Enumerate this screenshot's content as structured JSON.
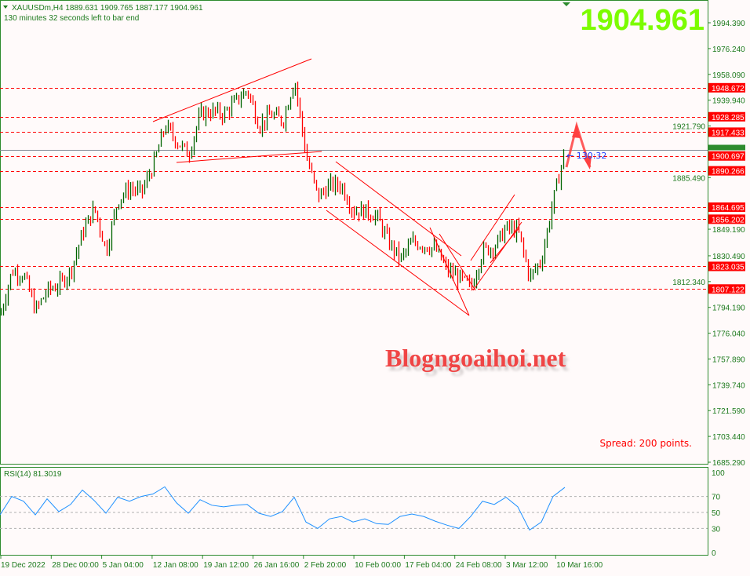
{
  "header": {
    "symbol_line": "XAUUSDm,H4  1889.631 1909.765 1887.177 1904.961",
    "timer_line": "130 minutes 32 seconds left to bar end"
  },
  "big_price": "1904.961",
  "watermark": "Blogngoaihoi.net",
  "spread_text": "Spread: 200 points.",
  "bar_timer": "← 130:32",
  "colors": {
    "background": "#fffafa",
    "frame": "#2e8b2e",
    "bull_bar": "#006400",
    "bear_bar": "#ff0000",
    "level_line": "#ff0000",
    "rsi_line": "#1e90ff",
    "big_price": "#7cfc00",
    "current_price_line": "#808a96"
  },
  "chart_data": [
    {
      "type": "ohlc",
      "symbol": "XAUUSDm",
      "timeframe": "H4",
      "last": {
        "open": 1889.631,
        "high": 1909.765,
        "low": 1887.177,
        "close": 1904.961
      },
      "ylim": [
        1685.29,
        1994.39
      ],
      "y_ticks": [
        "1994.390",
        "1976.240",
        "1958.090",
        "1939.940",
        "1921.790",
        "1885.490",
        "1849.190",
        "1830.490",
        "1812.340",
        "1794.190",
        "1776.040",
        "1757.890",
        "1739.740",
        "1721.590",
        "1703.440",
        "1685.290"
      ],
      "approx_closes": [
        1789,
        1820,
        1817,
        1792,
        1806,
        1810,
        1820,
        1847,
        1864,
        1834,
        1870,
        1878,
        1875,
        1894,
        1922,
        1911,
        1902,
        1930,
        1932,
        1930,
        1939,
        1947,
        1922,
        1930,
        1925,
        1955,
        1900,
        1872,
        1880,
        1880,
        1862,
        1862,
        1858,
        1840,
        1828,
        1840,
        1838,
        1835,
        1820,
        1815,
        1808,
        1834,
        1837,
        1850,
        1848,
        1815,
        1828,
        1870,
        1904.961
      ],
      "levels": [
        "1948.672",
        "1928.285",
        "1917.433",
        "1900.697",
        "1890.266",
        "1864.695",
        "1856.202",
        "1823.035",
        "1807.122"
      ],
      "current_price": "1904.961",
      "x_ticks": [
        "19 Dec 2022",
        "28 Dec 00:00",
        "5 Jan 04:00",
        "12 Jan 08:00",
        "19 Jan 12:00",
        "26 Jan 16:00",
        "2 Feb 20:00",
        "10 Feb 00:00",
        "17 Feb 04:00",
        "24 Feb 08:00",
        "3 Mar 12:00",
        "10 Mar 16:00"
      ]
    },
    {
      "type": "line",
      "title": "RSI(14) 81.3019",
      "ylim": [
        0,
        100
      ],
      "y_ticks": [
        "100",
        "70",
        "50",
        "30",
        "0"
      ],
      "levels": [
        70,
        50,
        30
      ],
      "values": [
        47,
        70,
        64,
        47,
        67,
        51,
        60,
        78,
        65,
        49,
        69,
        64,
        70,
        73,
        82,
        62,
        49,
        66,
        59,
        57,
        59,
        60,
        49,
        45,
        51,
        69,
        38,
        30,
        42,
        45,
        38,
        42,
        36,
        35,
        45,
        48,
        45,
        39,
        34,
        30,
        45,
        64,
        60,
        69,
        57,
        28,
        38,
        70,
        81.3019
      ]
    }
  ]
}
